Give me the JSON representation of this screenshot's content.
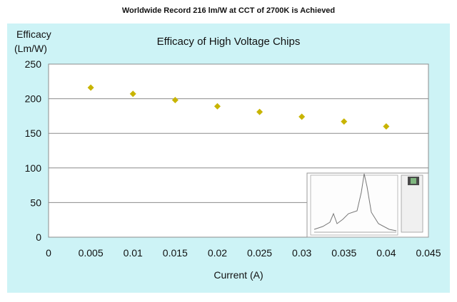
{
  "headline": "Worldwide Record 216 lm/W at CCT of 2700K is Achieved",
  "chart_data": {
    "type": "scatter",
    "title": "Efficacy of High Voltage Chips",
    "ylabel": "Efficacy (Lm/W)",
    "xlabel": "Current (A)",
    "xlim": [
      0,
      0.045
    ],
    "ylim": [
      0,
      250
    ],
    "x_ticks": [
      "0",
      "0.005",
      "0.01",
      "0.015",
      "0.02",
      "0.025",
      "0.03",
      "0.035",
      "0.04",
      "0.045"
    ],
    "y_ticks": [
      "0",
      "50",
      "100",
      "150",
      "200",
      "250"
    ],
    "grid": "horizontal",
    "legend": "none",
    "marker_color": "#c8b400",
    "series": [
      {
        "x": [
          0.005,
          0.01,
          0.015,
          0.02,
          0.025,
          0.03,
          0.035,
          0.04
        ],
        "y": [
          216,
          207,
          198,
          189,
          181,
          174,
          167,
          160
        ]
      }
    ]
  },
  "colors": {
    "panel_bg": "#cdf3f6",
    "plot_bg": "#ffffff",
    "grid": "#8c8c8c"
  },
  "inset": {
    "description_icon": "spectrum-inset-image"
  }
}
